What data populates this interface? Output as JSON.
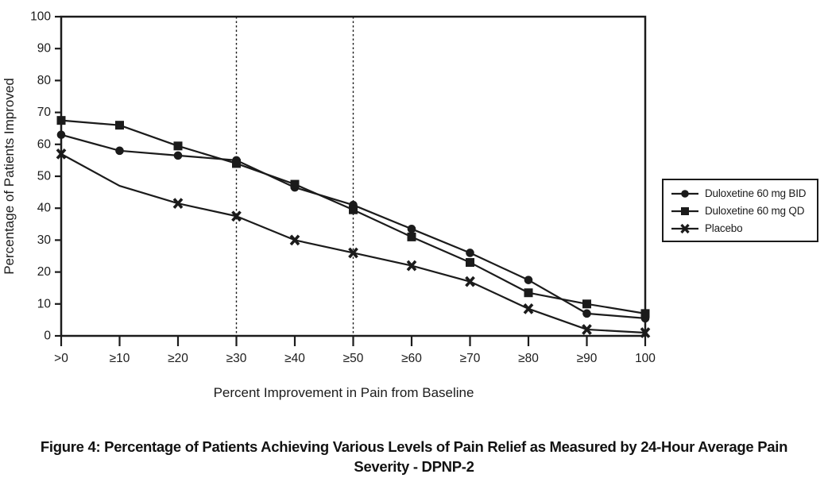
{
  "ink_color": "#1b1b1b",
  "background_color": "#ffffff",
  "chart_data": {
    "type": "line",
    "title": "",
    "xlabel": "Percent Improvement in Pain from Baseline",
    "ylabel": "Percentage of Patients Improved",
    "categories": [
      ">0",
      "≥10",
      "≥20",
      "≥30",
      "≥40",
      "≥50",
      "≥60",
      "≥70",
      "≥80",
      "≥90",
      "100"
    ],
    "y_ticks": [
      0,
      10,
      20,
      30,
      40,
      50,
      60,
      70,
      80,
      90,
      100
    ],
    "ylim": [
      0,
      100
    ],
    "grid": false,
    "reference_lines": {
      "style": "vertical-dotted",
      "categories": [
        "≥30",
        "≥50"
      ]
    },
    "legend_position": "right-outside",
    "series": [
      {
        "name": "Duloxetine 60 mg BID",
        "marker": "circle",
        "values": [
          63,
          58,
          56.5,
          55,
          46.5,
          41,
          33.5,
          26,
          17.5,
          7,
          5.5
        ]
      },
      {
        "name": "Duloxetine 60 mg QD",
        "marker": "square",
        "values": [
          67.5,
          66,
          59.5,
          54,
          47.5,
          39.5,
          31,
          23,
          13.5,
          10,
          7
        ]
      },
      {
        "name": "Placebo",
        "marker": "x",
        "values": [
          57,
          47,
          41.5,
          37.5,
          30,
          26,
          22,
          17,
          8.5,
          2,
          1
        ],
        "skip_marker_indices": [
          1
        ]
      }
    ]
  },
  "caption": {
    "line1": "Figure 4: Percentage of Patients Achieving Various Levels of Pain Relief as Measured by 24-Hour Average Pain",
    "line2": "Severity - DPNP-2"
  }
}
